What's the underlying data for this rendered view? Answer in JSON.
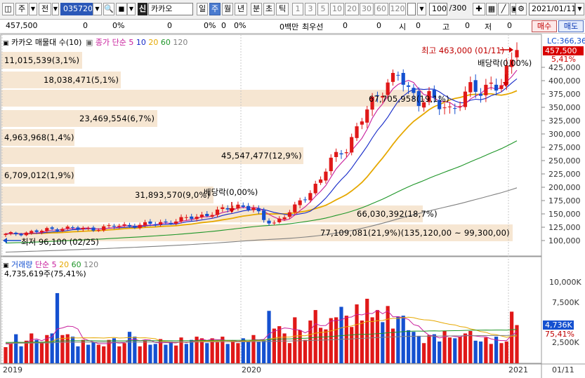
{
  "toolbar": {
    "kind": "주",
    "prev_label": "전",
    "code": "035720",
    "stock_prefix": "신",
    "stock_name": "카카오",
    "periods": [
      "일",
      "주",
      "월",
      "년",
      "분",
      "초",
      "틱"
    ],
    "selected_period": "주",
    "intervals": [
      "1",
      "3",
      "5",
      "10",
      "20",
      "30",
      "60",
      "120"
    ],
    "count": "100",
    "count_total": "/300",
    "date": "2021/01/11"
  },
  "info": {
    "price": "457,500",
    "v1": "0",
    "v2": "0%",
    "v3": "0",
    "v4": "0%",
    "v5": "0",
    "v6": "0%",
    "v7": "0백만",
    "priority_label": "최우선",
    "v8": "0",
    "v9": "0",
    "open_label": "시",
    "open": "0",
    "high_label": "고",
    "high": "0",
    "low_label": "저",
    "low": "0",
    "buy_label": "매수",
    "sell_label": "매도"
  },
  "price_legend": {
    "title": "카카오 매물대 수(10)",
    "ma_label": "종가 단순",
    "ma5": "5",
    "ma10": "10",
    "ma20": "20",
    "ma60": "60",
    "ma120": "120"
  },
  "volume_profile": [
    {
      "text": "11,015,539(3,1%)"
    },
    {
      "text": "18,038,471(5,1%)"
    },
    {
      "text": "67,705,958(19,1%)"
    },
    {
      "text": "23,469,554(6,7%)"
    },
    {
      "text": "4,963,968(1,4%)"
    },
    {
      "text": "45,547,477(12,9%)"
    },
    {
      "text": "6,709,012(1,9%)"
    },
    {
      "text": "31,893,570(9,0%)"
    },
    {
      "text": "66,030,392(18,7%)"
    },
    {
      "text": "77,109,081(21,9%)(135,120,00 ~ 99,300,00)"
    }
  ],
  "annotations": {
    "high": "최고 463,000 (01/11)",
    "low": "최저 96,100 (02/25)",
    "dividend1": "배당락(0,00%)",
    "dividend2": "배당락(0,00%)"
  },
  "price_axis": {
    "lc_label": "LC:366,36",
    "current": "457,500",
    "change": "5,41%",
    "ticks": [
      "425,000",
      "400,000",
      "375,000",
      "350,000",
      "325,000",
      "300,000",
      "275,000",
      "250,000",
      "225,000",
      "200,000",
      "175,000",
      "150,000",
      "125,000",
      "100,000"
    ]
  },
  "volume_legend": {
    "title": "거래량",
    "ma_label": "단순",
    "ma5": "5",
    "ma20": "20",
    "ma60": "60",
    "ma120": "120",
    "last": "4,735,619주(75,41%)"
  },
  "volume_axis": {
    "ticks": [
      "10,000K",
      "7,500K",
      "5,000K",
      "2,500K"
    ],
    "current": "4,736K",
    "pct": "75,41%"
  },
  "time_axis": {
    "labels": [
      "2019",
      "2020",
      "2021"
    ],
    "cursor_date": "01/11"
  },
  "colors": {
    "up": "#e01818",
    "down": "#1450d0",
    "ma5": "#c81e9c",
    "ma10": "#1428c8",
    "ma20": "#e6a800",
    "ma60": "#1e9628",
    "ma120": "#808080",
    "profile": "#f6e6d2"
  },
  "chart_data": {
    "type": "candlestick",
    "x_range": [
      "2019-01",
      "2021-01-11"
    ],
    "y_range": [
      90000,
      470000
    ],
    "price_knots": [
      [
        0,
        111000
      ],
      [
        6,
        117000
      ],
      [
        11,
        124000
      ],
      [
        16,
        121000
      ],
      [
        21,
        127000
      ],
      [
        26,
        129000
      ],
      [
        31,
        134000
      ],
      [
        35,
        141000
      ],
      [
        39,
        149000
      ],
      [
        42,
        157000
      ],
      [
        45,
        166000
      ],
      [
        48,
        160000
      ],
      [
        50,
        138000
      ],
      [
        52,
        134000
      ],
      [
        54,
        146000
      ],
      [
        56,
        162000
      ],
      [
        58,
        182000
      ],
      [
        61,
        215000
      ],
      [
        63,
        250000
      ],
      [
        66,
        275000
      ],
      [
        68,
        310000
      ],
      [
        70,
        344000
      ],
      [
        72,
        373000
      ],
      [
        74,
        400000
      ],
      [
        76,
        410000
      ],
      [
        78,
        380000
      ],
      [
        80,
        365000
      ],
      [
        82,
        372000
      ],
      [
        84,
        350000
      ],
      [
        86,
        345000
      ],
      [
        88,
        365000
      ],
      [
        90,
        385000
      ],
      [
        92,
        375000
      ],
      [
        94,
        398000
      ],
      [
        96,
        393000
      ],
      [
        98,
        434000
      ],
      [
        99,
        457500
      ]
    ],
    "volume_values": [
      2000,
      2400,
      3600,
      2100,
      2800,
      3700,
      2900,
      2500,
      3500,
      3700,
      8700,
      3500,
      3600,
      3300,
      2100,
      2900,
      2300,
      2600,
      2300,
      2100,
      2900,
      3100,
      2100,
      2500,
      3900,
      3300,
      2100,
      2800,
      2300,
      2400,
      3000,
      2300,
      2700,
      2200,
      3200,
      2400,
      2900,
      3300,
      3100,
      2500,
      3100,
      2600,
      3300,
      2400,
      2800,
      2500,
      3100,
      2700,
      3500,
      2700,
      2800,
      6500,
      4300,
      4600,
      3700,
      2500,
      5700,
      4100,
      2900,
      5300,
      6600,
      4400,
      4200,
      5600,
      5700,
      7000,
      5900,
      4500,
      7300,
      5300,
      8000,
      5700,
      6600,
      5100,
      7100,
      4300,
      5800,
      5900,
      4100,
      3900,
      3400,
      2500,
      3500,
      3600,
      2700,
      4000,
      3200,
      3100,
      3300,
      3700,
      4000,
      2800,
      2700,
      3200,
      2400,
      3300,
      2500,
      2700,
      6400,
      4736
    ]
  }
}
